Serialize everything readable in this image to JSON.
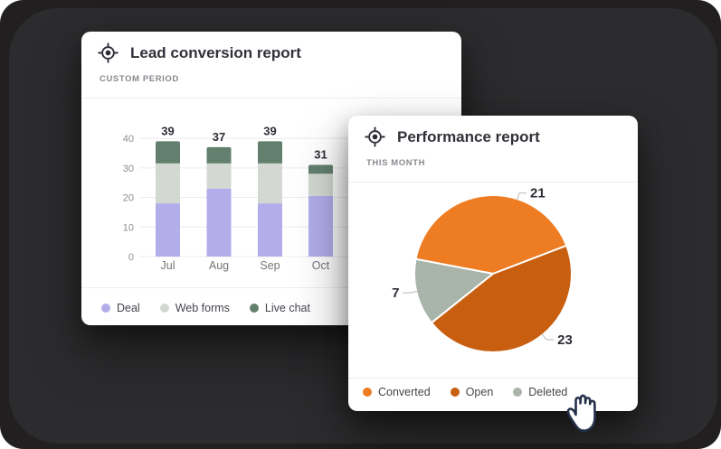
{
  "canvas": {
    "outer_bg": "#211f20",
    "panel_bg": "#2c2b2d",
    "card_bg": "#ffffff"
  },
  "cursor": {
    "kind": "hand",
    "fill": "#ffffff",
    "outline": "#25304a"
  },
  "chart_data": [
    {
      "type": "bar",
      "stacked": true,
      "title": "Lead conversion report",
      "subtitle": "CUSTOM PERIOD",
      "categories": [
        "Jul",
        "Aug",
        "Sep",
        "Oct"
      ],
      "series": [
        {
          "name": "Deal",
          "color": "#b3adea",
          "values": [
            18,
            23,
            18,
            20.5
          ]
        },
        {
          "name": "Web forms",
          "color": "#d3d8d2",
          "values": [
            13.5,
            8.5,
            13.5,
            7.5
          ]
        },
        {
          "name": "Live chat",
          "color": "#63806e",
          "values": [
            7.5,
            5.5,
            7.5,
            3
          ]
        }
      ],
      "totals": [
        39,
        37,
        39,
        31
      ],
      "ylim": [
        0,
        40
      ],
      "yticks": [
        0,
        10,
        20,
        30,
        40
      ],
      "grid": true,
      "legend_position": "bottom"
    },
    {
      "type": "pie",
      "title": "Performance report",
      "subtitle": "THIS MONTH",
      "slices": [
        {
          "label": "Converted",
          "value": 21,
          "color": "#ee7c23",
          "label_angle": 72
        },
        {
          "label": "Open",
          "value": 23,
          "color": "#c85f10",
          "label_angle": 309
        },
        {
          "label": "Deleted",
          "value": 7,
          "color": "#a9b4aa",
          "label_angle": 193
        }
      ],
      "start_angle": 21,
      "sweep_order": [
        0,
        2,
        1
      ],
      "legend_position": "bottom"
    }
  ]
}
